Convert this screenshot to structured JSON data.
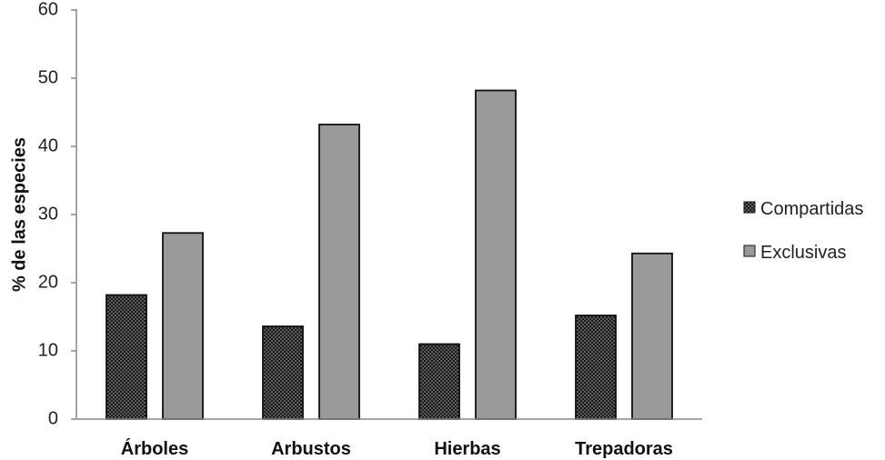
{
  "chart_data": {
    "type": "bar",
    "title": "",
    "xlabel": "",
    "ylabel": "% de las especies",
    "ylim": [
      0,
      60
    ],
    "yticks": [
      "0",
      "10",
      "20",
      "30",
      "40",
      "50",
      "60"
    ],
    "categories": [
      "Árboles",
      "Arbustos",
      "Hierbas",
      "Trepadoras"
    ],
    "series": [
      {
        "name": "Compartidas",
        "values": [
          18.2,
          13.6,
          11.0,
          15.2
        ],
        "color": "#1a1a1a",
        "pattern": "dotted-dark"
      },
      {
        "name": "Exclusivas",
        "values": [
          27.3,
          43.2,
          48.2,
          24.3
        ],
        "color": "#9a9a9a",
        "pattern": "solid-gray"
      }
    ],
    "grid": false,
    "legend_position": "right"
  }
}
